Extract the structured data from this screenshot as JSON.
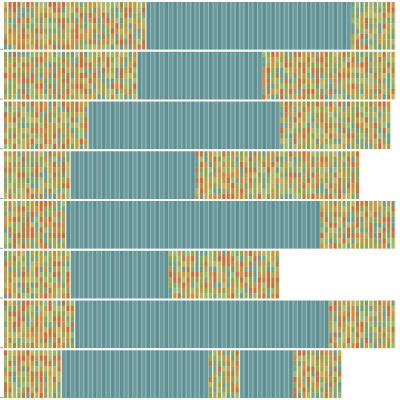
{
  "chart_data": {
    "type": "heatmap",
    "title": "",
    "xlabel": "",
    "ylabel": "",
    "grid": true,
    "legend": "none",
    "n_columns": 88,
    "rows": [
      {
        "length": 88,
        "segments": [
          {
            "state": "mixed",
            "start": 0,
            "end": 32
          },
          {
            "state": "aligned",
            "start": 32,
            "end": 78
          },
          {
            "state": "mixed",
            "start": 78,
            "end": 88
          }
        ]
      },
      {
        "length": 88,
        "segments": [
          {
            "state": "mixed",
            "start": 0,
            "end": 30
          },
          {
            "state": "aligned",
            "start": 30,
            "end": 58
          },
          {
            "state": "mixed",
            "start": 58,
            "end": 88
          }
        ]
      },
      {
        "length": 87,
        "segments": [
          {
            "state": "mixed",
            "start": 0,
            "end": 19
          },
          {
            "state": "aligned",
            "start": 19,
            "end": 62
          },
          {
            "state": "mixed",
            "start": 62,
            "end": 87
          }
        ]
      },
      {
        "length": 80,
        "segments": [
          {
            "state": "mixed",
            "start": 0,
            "end": 15
          },
          {
            "state": "aligned",
            "start": 15,
            "end": 43
          },
          {
            "state": "mixed",
            "start": 43,
            "end": 80
          }
        ]
      },
      {
        "length": 88,
        "segments": [
          {
            "state": "mixed",
            "start": 0,
            "end": 14
          },
          {
            "state": "aligned",
            "start": 14,
            "end": 71
          },
          {
            "state": "mixed",
            "start": 71,
            "end": 88
          }
        ]
      },
      {
        "length": 62,
        "segments": [
          {
            "state": "mixed",
            "start": 0,
            "end": 15
          },
          {
            "state": "aligned",
            "start": 15,
            "end": 37
          },
          {
            "state": "mixed",
            "start": 37,
            "end": 62
          }
        ]
      },
      {
        "length": 88,
        "segments": [
          {
            "state": "mixed",
            "start": 0,
            "end": 16
          },
          {
            "state": "aligned",
            "start": 16,
            "end": 73
          },
          {
            "state": "mixed",
            "start": 73,
            "end": 88
          }
        ]
      },
      {
        "length": 76,
        "segments": [
          {
            "state": "mixed",
            "start": 0,
            "end": 13
          },
          {
            "state": "aligned",
            "start": 13,
            "end": 46
          },
          {
            "state": "mixed",
            "start": 46,
            "end": 53
          },
          {
            "state": "aligned",
            "start": 53,
            "end": 65
          },
          {
            "state": "mixed",
            "start": 65,
            "end": 76
          }
        ]
      }
    ]
  },
  "colors": {
    "background": "#ffffff",
    "aligned": "#5f8f92",
    "aligned_alt": "#6a9a9c",
    "mixed_palette": [
      "#8fa548",
      "#a8a34a",
      "#c49a3c",
      "#d08a3a",
      "#7fa27a",
      "#c27a3a",
      "#b9b35c",
      "#6f9c88",
      "#cf6a3a",
      "#98b86a"
    ],
    "column_gap": "#e9eee9",
    "row_divider": "#ffffff"
  }
}
